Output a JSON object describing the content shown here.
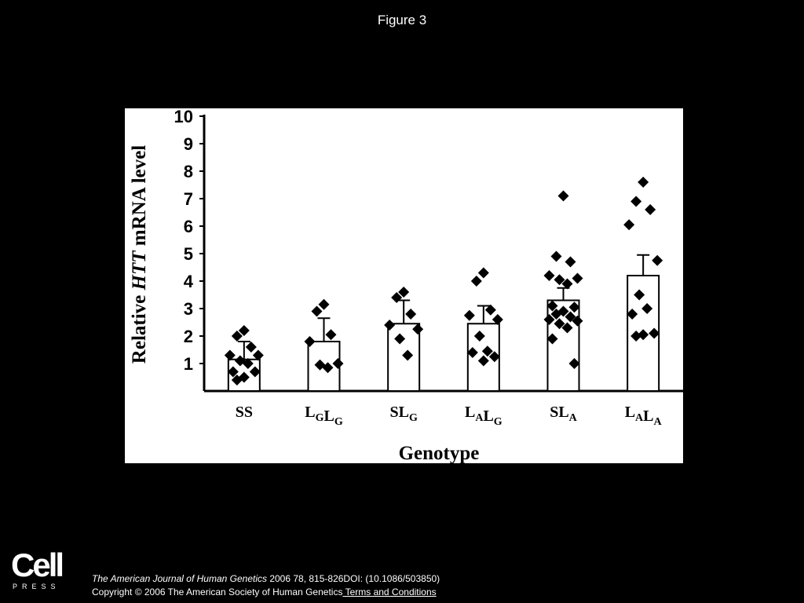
{
  "figure_title": "Figure 3",
  "footer": {
    "logo_word": "Cell",
    "logo_sub": "PRESS",
    "journal": "The American Journal of Human Genetics",
    "ref": " 2006 78, 815-826DOI: (10.1086/503850)",
    "copyright": "Copyright © 2006 The American Society of Human Genetics",
    "terms": " Terms and Conditions"
  },
  "chart_data": {
    "type": "bar",
    "title": "",
    "xlabel": "Genotype",
    "ylabel_parts": [
      "Relative ",
      "HTT",
      " mRNA level"
    ],
    "ylim": [
      0,
      10
    ],
    "yticks": [
      1,
      2,
      3,
      4,
      5,
      6,
      7,
      8,
      9,
      10
    ],
    "categories": [
      {
        "base": [
          "S",
          "S"
        ],
        "subs": [
          "",
          ""
        ]
      },
      {
        "base": [
          "L",
          "L"
        ],
        "subs": [
          "G",
          "G"
        ]
      },
      {
        "base": [
          "SL"
        ],
        "subs": [
          "G"
        ]
      },
      {
        "base": [
          "L",
          "L"
        ],
        "subs": [
          "A",
          "G"
        ]
      },
      {
        "base": [
          "SL"
        ],
        "subs": [
          "A"
        ]
      },
      {
        "base": [
          "L",
          "L"
        ],
        "subs": [
          "A",
          "A"
        ]
      }
    ],
    "means": [
      1.15,
      1.8,
      2.45,
      2.45,
      3.3,
      4.2
    ],
    "error_upper": [
      1.8,
      2.65,
      3.3,
      3.1,
      3.75,
      4.95
    ],
    "points": [
      [
        2.2,
        2.0,
        1.6,
        1.3,
        1.3,
        1.1,
        1.0,
        0.7,
        0.7,
        0.5,
        0.4
      ],
      [
        3.15,
        2.9,
        2.05,
        1.8,
        1.0,
        0.95,
        0.85
      ],
      [
        3.6,
        3.4,
        2.8,
        2.4,
        2.25,
        1.9,
        1.3
      ],
      [
        4.3,
        4.0,
        2.95,
        2.75,
        2.6,
        2.0,
        1.45,
        1.4,
        1.25,
        1.1
      ],
      [
        7.1,
        4.9,
        4.7,
        4.2,
        4.1,
        4.05,
        3.9,
        3.1,
        3.05,
        2.9,
        2.8,
        2.7,
        2.6,
        2.55,
        2.45,
        2.3,
        1.9,
        1.0
      ],
      [
        7.6,
        6.9,
        6.6,
        6.05,
        4.75,
        3.5,
        3.0,
        2.8,
        2.1,
        2.05,
        2.0
      ]
    ]
  }
}
